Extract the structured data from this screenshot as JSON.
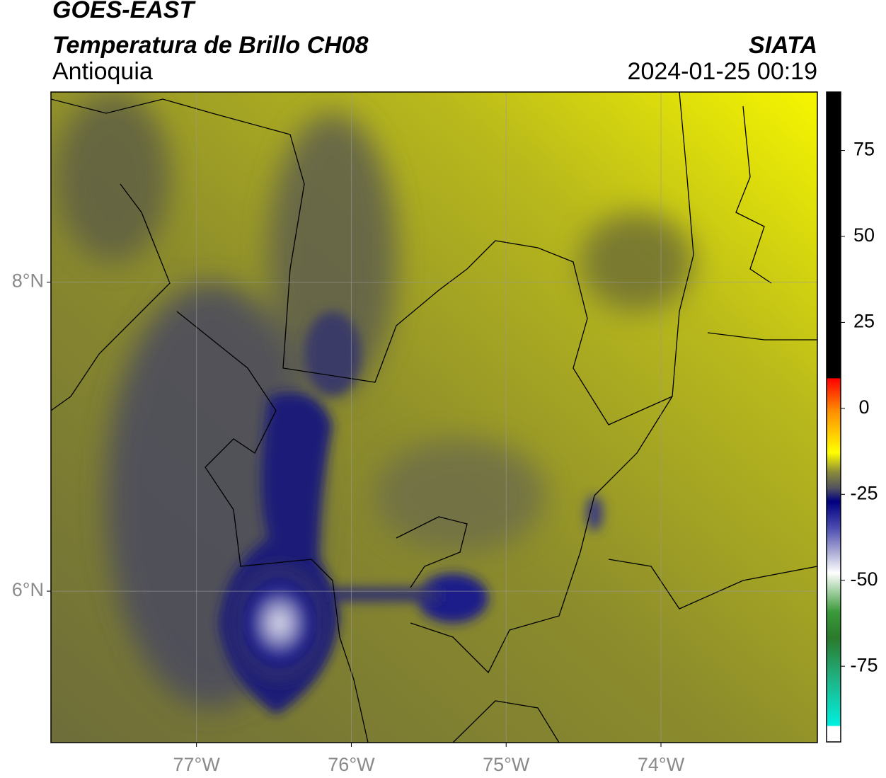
{
  "header": {
    "title": "GOES-EAST",
    "subtitle": "Temperatura de Brillo CH08",
    "region": "Antioquia",
    "source": "SIATA",
    "datetime": "2024-01-25 00:19"
  },
  "map": {
    "xlim": [
      -77.94,
      -72.99
    ],
    "ylim": [
      5.02,
      9.23
    ],
    "xticks": [
      {
        "value": -77,
        "label": "77°W"
      },
      {
        "value": -76,
        "label": "76°W"
      },
      {
        "value": -75,
        "label": "75°W"
      },
      {
        "value": -74,
        "label": "74°W"
      }
    ],
    "yticks": [
      {
        "value": 8,
        "label": "8°N"
      },
      {
        "value": 6,
        "label": "6°N"
      }
    ],
    "grid": true
  },
  "colorbar": {
    "lim": [
      -97,
      92
    ],
    "ticks": [
      75,
      50,
      25,
      0,
      -25,
      -50,
      -75
    ]
  }
}
